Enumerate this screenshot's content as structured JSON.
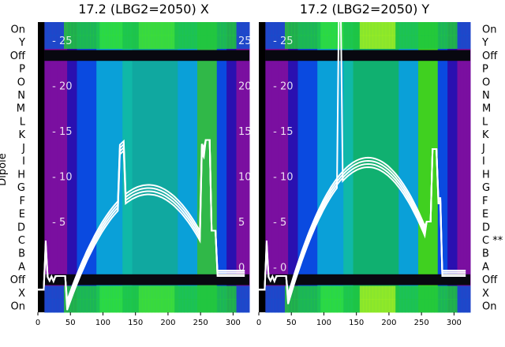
{
  "chart_data": [
    {
      "type": "heatmap",
      "title": "17.2 (LBG2=2050) X",
      "ylabel": "Dipole",
      "x_ticks": [
        0,
        50,
        100,
        150,
        200,
        250,
        300
      ],
      "y_ticks": [
        0,
        5,
        10,
        15,
        20,
        25
      ],
      "xlim": [
        0,
        325
      ],
      "ylim": [
        -5,
        27
      ],
      "row_labels": [
        "On",
        "X",
        "Off",
        "A",
        "B",
        "C",
        "D",
        "E",
        "F",
        "G",
        "H",
        "I",
        "J",
        "K",
        "L",
        "M",
        "N",
        "O",
        "P",
        "Off",
        "Y",
        "On"
      ],
      "series_line_color": "#ffffff"
    },
    {
      "type": "heatmap",
      "title": "17.2 (LBG2=2050) Y",
      "x_ticks": [
        0,
        50,
        100,
        150,
        200,
        250,
        300
      ],
      "y_ticks": [
        0,
        5,
        10,
        15,
        20,
        25
      ],
      "xlim": [
        0,
        325
      ],
      "ylim": [
        -5,
        27
      ],
      "row_labels": [
        "On",
        "X",
        "Off",
        "A",
        "B",
        "C **",
        "D",
        "E",
        "F",
        "G",
        "H",
        "I",
        "J",
        "K",
        "L",
        "M",
        "N",
        "O",
        "P",
        "Off",
        "Y",
        "On"
      ],
      "series_line_color": "#ffffff"
    }
  ]
}
